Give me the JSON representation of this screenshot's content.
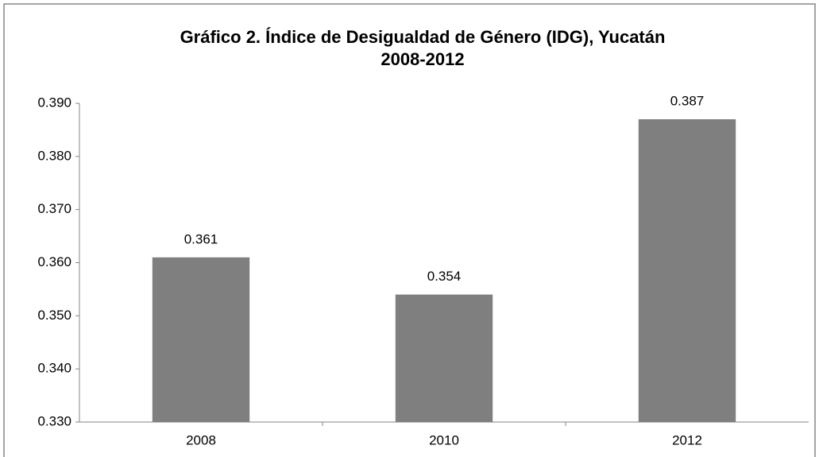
{
  "chart_data": {
    "type": "bar",
    "title": [
      "Gráfico 2. Índice de Desigualdad de Género (IDG), Yucatán",
      "2008-2012"
    ],
    "categories": [
      "2008",
      "2010",
      "2012"
    ],
    "values": [
      0.361,
      0.354,
      0.387
    ],
    "color": "#7f7f7f",
    "ylim": [
      0.33,
      0.39
    ],
    "yticks": [
      {
        "value": 0.33,
        "label": "0.330"
      },
      {
        "value": 0.34,
        "label": "0.340"
      },
      {
        "value": 0.35,
        "label": "0.350"
      },
      {
        "value": 0.36,
        "label": "0.360"
      },
      {
        "value": 0.37,
        "label": "0.370"
      },
      {
        "value": 0.38,
        "label": "0.380"
      },
      {
        "value": 0.39,
        "label": "0.390"
      }
    ],
    "grid": false
  }
}
